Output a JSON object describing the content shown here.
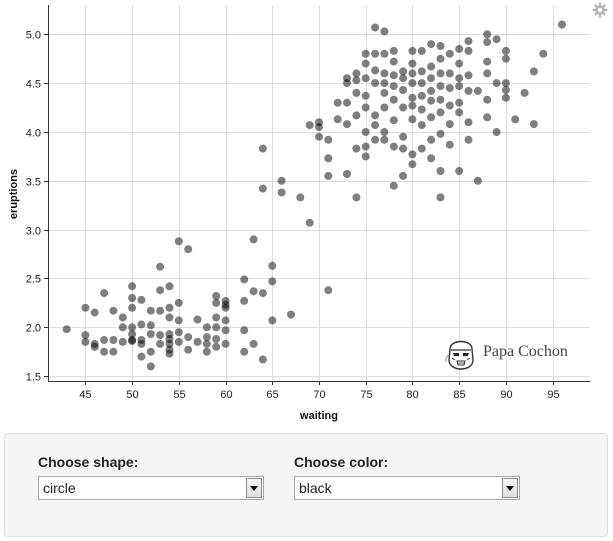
{
  "chart_data": {
    "type": "scatter",
    "title": "",
    "xlabel": "waiting",
    "ylabel": "eruptions",
    "xlim": [
      41,
      99
    ],
    "ylim": [
      1.45,
      5.3
    ],
    "x_ticks": [
      45,
      50,
      55,
      60,
      65,
      70,
      75,
      80,
      85,
      90,
      95
    ],
    "y_ticks": [
      1.5,
      2.0,
      2.5,
      3.0,
      3.5,
      4.0,
      4.5,
      5.0
    ],
    "x_tick_labels": [
      "45",
      "50",
      "55",
      "60",
      "65",
      "70",
      "75",
      "80",
      "85",
      "90",
      "95"
    ],
    "y_tick_labels": [
      "1.5",
      "2.0",
      "2.5",
      "3.0",
      "3.5",
      "4.0",
      "4.5",
      "5.0"
    ],
    "grid": true,
    "marker_shape": "circle",
    "marker_color": "#000000",
    "marker_opacity": 0.5,
    "points": [
      [
        43,
        1.98
      ],
      [
        45,
        2.2
      ],
      [
        45,
        1.92
      ],
      [
        45,
        1.85
      ],
      [
        46,
        2.15
      ],
      [
        46,
        1.83
      ],
      [
        46,
        1.8
      ],
      [
        47,
        2.35
      ],
      [
        47,
        1.87
      ],
      [
        47,
        1.75
      ],
      [
        48,
        2.17
      ],
      [
        48,
        1.87
      ],
      [
        48,
        1.75
      ],
      [
        49,
        2.0
      ],
      [
        49,
        1.85
      ],
      [
        49,
        2.1
      ],
      [
        50,
        2.42
      ],
      [
        50,
        2.3
      ],
      [
        50,
        2.2
      ],
      [
        50,
        2.0
      ],
      [
        50,
        1.93
      ],
      [
        50,
        1.86
      ],
      [
        50,
        1.87
      ],
      [
        51,
        2.28
      ],
      [
        51,
        1.87
      ],
      [
        51,
        2.03
      ],
      [
        51,
        1.83
      ],
      [
        51,
        1.7
      ],
      [
        52,
        2.17
      ],
      [
        52,
        2.02
      ],
      [
        52,
        1.93
      ],
      [
        52,
        1.75
      ],
      [
        52,
        1.6
      ],
      [
        53,
        2.62
      ],
      [
        53,
        2.38
      ],
      [
        53,
        2.17
      ],
      [
        53,
        1.92
      ],
      [
        53,
        1.83
      ],
      [
        54,
        2.42
      ],
      [
        54,
        2.2
      ],
      [
        54,
        2.1
      ],
      [
        54,
        1.93
      ],
      [
        54,
        1.83
      ],
      [
        54,
        1.77
      ],
      [
        54,
        1.88
      ],
      [
        54,
        1.73
      ],
      [
        55,
        2.88
      ],
      [
        55,
        2.25
      ],
      [
        55,
        2.07
      ],
      [
        55,
        1.95
      ],
      [
        55,
        1.85
      ],
      [
        56,
        2.8
      ],
      [
        56,
        1.9
      ],
      [
        56,
        1.77
      ],
      [
        57,
        2.08
      ],
      [
        57,
        1.85
      ],
      [
        58,
        2.0
      ],
      [
        58,
        1.9
      ],
      [
        58,
        1.83
      ],
      [
        58,
        1.75
      ],
      [
        59,
        2.32
      ],
      [
        59,
        2.25
      ],
      [
        59,
        2.1
      ],
      [
        59,
        2.0
      ],
      [
        59,
        1.88
      ],
      [
        59,
        1.8
      ],
      [
        60,
        2.27
      ],
      [
        60,
        2.2
      ],
      [
        60,
        2.07
      ],
      [
        60,
        1.97
      ],
      [
        60,
        1.83
      ],
      [
        60,
        2.23
      ],
      [
        62,
        2.49
      ],
      [
        62,
        2.27
      ],
      [
        62,
        1.97
      ],
      [
        62,
        1.75
      ],
      [
        63,
        2.9
      ],
      [
        63,
        2.37
      ],
      [
        63,
        1.83
      ],
      [
        64,
        3.83
      ],
      [
        64,
        3.42
      ],
      [
        64,
        2.35
      ],
      [
        64,
        1.67
      ],
      [
        65,
        2.63
      ],
      [
        65,
        2.47
      ],
      [
        65,
        2.07
      ],
      [
        66,
        3.5
      ],
      [
        66,
        3.38
      ],
      [
        67,
        2.13
      ],
      [
        68,
        3.33
      ],
      [
        69,
        4.07
      ],
      [
        69,
        3.07
      ],
      [
        70,
        4.1
      ],
      [
        70,
        4.05
      ],
      [
        70,
        3.95
      ],
      [
        71,
        3.92
      ],
      [
        71,
        3.73
      ],
      [
        71,
        3.55
      ],
      [
        71,
        2.38
      ],
      [
        72,
        4.3
      ],
      [
        72,
        4.13
      ],
      [
        73,
        4.55
      ],
      [
        73,
        4.5
      ],
      [
        73,
        4.3
      ],
      [
        73,
        4.08
      ],
      [
        73,
        3.57
      ],
      [
        74,
        4.6
      ],
      [
        74,
        4.53
      ],
      [
        74,
        4.4
      ],
      [
        74,
        4.17
      ],
      [
        74,
        3.83
      ],
      [
        74,
        3.33
      ],
      [
        75,
        4.8
      ],
      [
        75,
        4.7
      ],
      [
        75,
        4.55
      ],
      [
        75,
        4.37
      ],
      [
        75,
        4.25
      ],
      [
        75,
        4.0
      ],
      [
        75,
        3.85
      ],
      [
        75,
        3.75
      ],
      [
        76,
        5.07
      ],
      [
        76,
        4.8
      ],
      [
        76,
        4.63
      ],
      [
        76,
        4.5
      ],
      [
        76,
        4.17
      ],
      [
        76,
        4.07
      ],
      [
        76,
        3.92
      ],
      [
        77,
        5.03
      ],
      [
        77,
        4.8
      ],
      [
        77,
        4.6
      ],
      [
        77,
        4.5
      ],
      [
        77,
        4.4
      ],
      [
        77,
        4.25
      ],
      [
        77,
        4.0
      ],
      [
        77,
        3.92
      ],
      [
        78,
        4.83
      ],
      [
        78,
        4.72
      ],
      [
        78,
        4.58
      ],
      [
        78,
        4.47
      ],
      [
        78,
        4.33
      ],
      [
        78,
        4.12
      ],
      [
        78,
        3.85
      ],
      [
        78,
        3.45
      ],
      [
        79,
        4.62
      ],
      [
        79,
        4.55
      ],
      [
        79,
        4.43
      ],
      [
        79,
        4.25
      ],
      [
        79,
        3.95
      ],
      [
        79,
        3.83
      ],
      [
        79,
        3.55
      ],
      [
        80,
        4.83
      ],
      [
        80,
        4.7
      ],
      [
        80,
        4.6
      ],
      [
        80,
        4.5
      ],
      [
        80,
        4.35
      ],
      [
        80,
        4.27
      ],
      [
        80,
        4.13
      ],
      [
        80,
        3.77
      ],
      [
        80,
        3.67
      ],
      [
        81,
        4.83
      ],
      [
        81,
        4.62
      ],
      [
        81,
        4.5
      ],
      [
        81,
        4.37
      ],
      [
        81,
        4.23
      ],
      [
        81,
        4.07
      ],
      [
        81,
        3.83
      ],
      [
        82,
        4.9
      ],
      [
        82,
        4.67
      ],
      [
        82,
        4.55
      ],
      [
        82,
        4.42
      ],
      [
        82,
        4.32
      ],
      [
        82,
        4.15
      ],
      [
        82,
        3.92
      ],
      [
        82,
        3.73
      ],
      [
        83,
        4.88
      ],
      [
        83,
        4.75
      ],
      [
        83,
        4.6
      ],
      [
        83,
        4.47
      ],
      [
        83,
        4.33
      ],
      [
        83,
        4.2
      ],
      [
        83,
        3.98
      ],
      [
        83,
        3.6
      ],
      [
        83,
        3.33
      ],
      [
        84,
        4.8
      ],
      [
        84,
        4.6
      ],
      [
        84,
        4.45
      ],
      [
        84,
        4.27
      ],
      [
        84,
        4.08
      ],
      [
        84,
        3.87
      ],
      [
        85,
        4.85
      ],
      [
        85,
        4.7
      ],
      [
        85,
        4.55
      ],
      [
        85,
        4.47
      ],
      [
        85,
        4.3
      ],
      [
        85,
        4.2
      ],
      [
        85,
        3.6
      ],
      [
        86,
        4.93
      ],
      [
        86,
        4.83
      ],
      [
        86,
        4.58
      ],
      [
        86,
        4.42
      ],
      [
        86,
        4.1
      ],
      [
        86,
        3.92
      ],
      [
        87,
        4.42
      ],
      [
        87,
        3.5
      ],
      [
        88,
        5.0
      ],
      [
        88,
        4.92
      ],
      [
        88,
        4.72
      ],
      [
        88,
        4.6
      ],
      [
        88,
        4.33
      ],
      [
        88,
        4.15
      ],
      [
        89,
        4.95
      ],
      [
        89,
        4.5
      ],
      [
        89,
        4.0
      ],
      [
        90,
        4.83
      ],
      [
        90,
        4.75
      ],
      [
        90,
        4.5
      ],
      [
        90,
        4.43
      ],
      [
        90,
        4.35
      ],
      [
        91,
        4.13
      ],
      [
        92,
        4.4
      ],
      [
        93,
        4.62
      ],
      [
        93,
        4.08
      ],
      [
        94,
        4.8
      ],
      [
        96,
        5.1
      ]
    ]
  },
  "watermark": {
    "text": "Papa Cochon"
  },
  "controls": {
    "shape": {
      "label": "Choose shape:",
      "value": "circle"
    },
    "color": {
      "label": "Choose color:",
      "value": "black"
    }
  },
  "icons": {
    "settings": "gear-icon",
    "watermark_logo": "stormtrooper-helmet-icon"
  },
  "colors": {
    "panel_background": "#f5f5f5",
    "grid": "#dddddd",
    "point": "#000000"
  }
}
